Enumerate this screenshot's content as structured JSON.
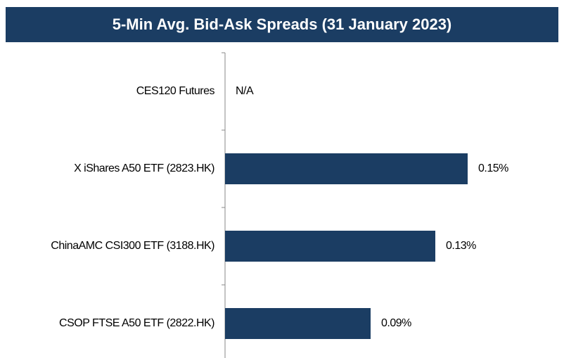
{
  "chart_data": {
    "type": "hbar",
    "title": "5-Min Avg. Bid-Ask Spreads (31 January 2023)",
    "categories": [
      "CES120 Futures",
      "X iShares A50 ETF (2823.HK)",
      "ChinaAMC CSI300 ETF (3188.HK)",
      "CSOP FTSE A50 ETF (2822.HK)"
    ],
    "values": [
      null,
      0.15,
      0.13,
      0.09
    ],
    "value_labels": [
      "N/A",
      "0.15%",
      "0.13%",
      "0.09%"
    ],
    "color": "#1b3d63"
  }
}
